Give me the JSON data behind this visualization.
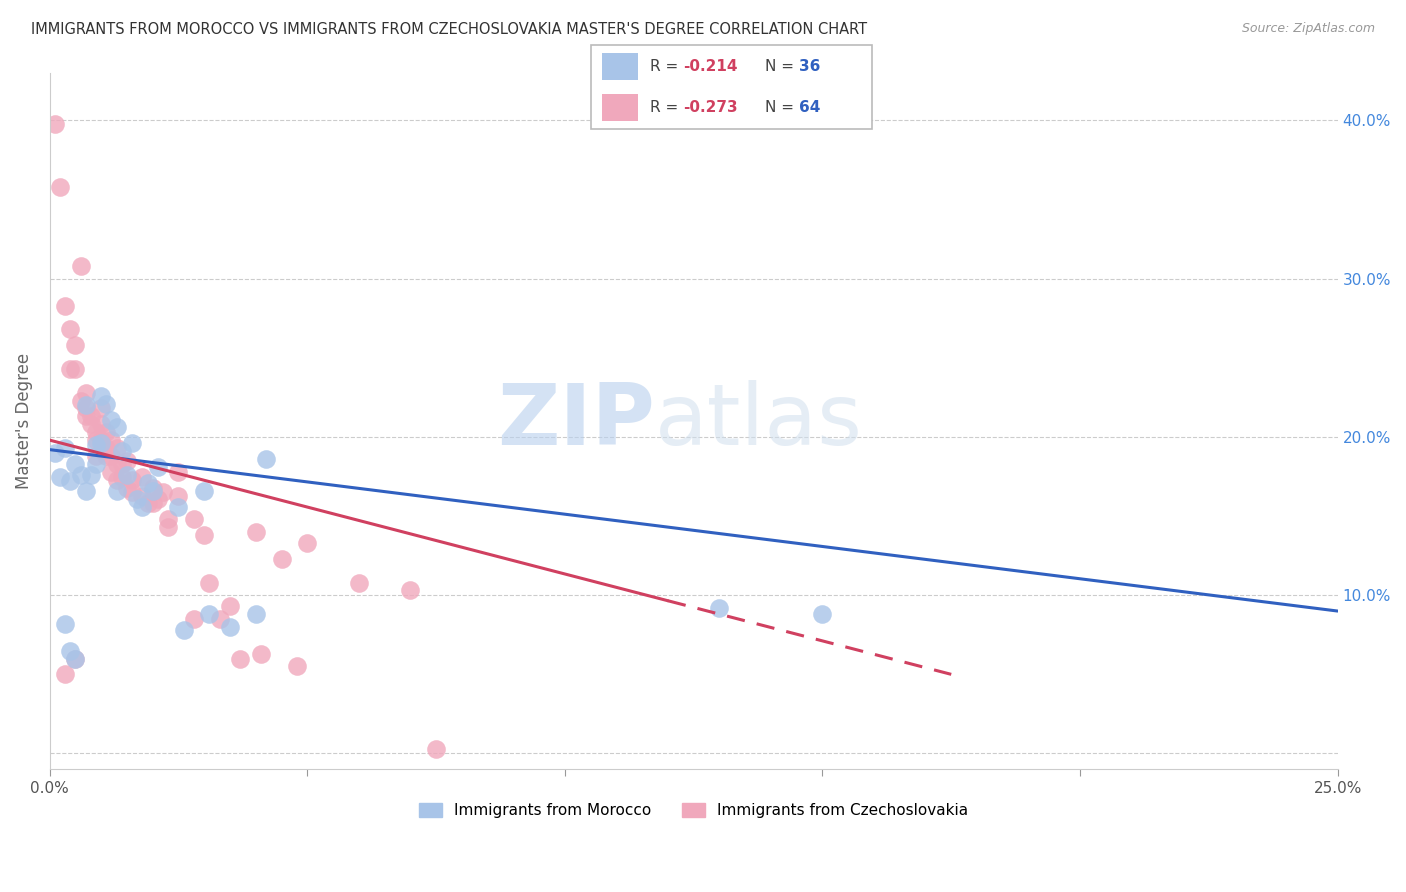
{
  "title": "IMMIGRANTS FROM MOROCCO VS IMMIGRANTS FROM CZECHOSLOVAKIA MASTER'S DEGREE CORRELATION CHART",
  "source": "Source: ZipAtlas.com",
  "ylabel": "Master's Degree",
  "y_ticks": [
    0.0,
    0.1,
    0.2,
    0.3,
    0.4
  ],
  "y_tick_labels": [
    "",
    "10.0%",
    "20.0%",
    "30.0%",
    "40.0%"
  ],
  "x_lim": [
    0.0,
    0.25
  ],
  "y_lim": [
    -0.01,
    0.43
  ],
  "watermark_zip": "ZIP",
  "watermark_atlas": "atlas",
  "blue_color": "#A8C4E8",
  "pink_color": "#F0A8BC",
  "blue_line_color": "#3060C0",
  "pink_line_color": "#D04060",
  "blue_scatter": [
    [
      0.001,
      0.19
    ],
    [
      0.002,
      0.175
    ],
    [
      0.003,
      0.193
    ],
    [
      0.004,
      0.172
    ],
    [
      0.004,
      0.065
    ],
    [
      0.005,
      0.183
    ],
    [
      0.005,
      0.06
    ],
    [
      0.006,
      0.176
    ],
    [
      0.007,
      0.166
    ],
    [
      0.007,
      0.22
    ],
    [
      0.008,
      0.176
    ],
    [
      0.009,
      0.183
    ],
    [
      0.009,
      0.195
    ],
    [
      0.01,
      0.226
    ],
    [
      0.01,
      0.196
    ],
    [
      0.011,
      0.221
    ],
    [
      0.012,
      0.211
    ],
    [
      0.013,
      0.206
    ],
    [
      0.013,
      0.166
    ],
    [
      0.014,
      0.191
    ],
    [
      0.015,
      0.176
    ],
    [
      0.016,
      0.196
    ],
    [
      0.017,
      0.161
    ],
    [
      0.018,
      0.156
    ],
    [
      0.019,
      0.171
    ],
    [
      0.02,
      0.166
    ],
    [
      0.021,
      0.181
    ],
    [
      0.025,
      0.156
    ],
    [
      0.026,
      0.078
    ],
    [
      0.03,
      0.166
    ],
    [
      0.031,
      0.088
    ],
    [
      0.035,
      0.08
    ],
    [
      0.04,
      0.088
    ],
    [
      0.042,
      0.186
    ],
    [
      0.003,
      0.082
    ],
    [
      0.13,
      0.092
    ],
    [
      0.15,
      0.088
    ]
  ],
  "pink_scatter": [
    [
      0.001,
      0.398
    ],
    [
      0.002,
      0.358
    ],
    [
      0.003,
      0.283
    ],
    [
      0.003,
      0.05
    ],
    [
      0.004,
      0.268
    ],
    [
      0.004,
      0.243
    ],
    [
      0.005,
      0.258
    ],
    [
      0.005,
      0.243
    ],
    [
      0.005,
      0.06
    ],
    [
      0.006,
      0.308
    ],
    [
      0.006,
      0.223
    ],
    [
      0.007,
      0.228
    ],
    [
      0.007,
      0.218
    ],
    [
      0.007,
      0.213
    ],
    [
      0.008,
      0.213
    ],
    [
      0.008,
      0.208
    ],
    [
      0.009,
      0.203
    ],
    [
      0.009,
      0.198
    ],
    [
      0.009,
      0.188
    ],
    [
      0.01,
      0.218
    ],
    [
      0.01,
      0.208
    ],
    [
      0.01,
      0.198
    ],
    [
      0.011,
      0.203
    ],
    [
      0.011,
      0.193
    ],
    [
      0.011,
      0.188
    ],
    [
      0.012,
      0.198
    ],
    [
      0.012,
      0.188
    ],
    [
      0.012,
      0.178
    ],
    [
      0.013,
      0.193
    ],
    [
      0.013,
      0.183
    ],
    [
      0.013,
      0.173
    ],
    [
      0.014,
      0.183
    ],
    [
      0.014,
      0.175
    ],
    [
      0.015,
      0.185
    ],
    [
      0.015,
      0.168
    ],
    [
      0.016,
      0.173
    ],
    [
      0.016,
      0.165
    ],
    [
      0.018,
      0.175
    ],
    [
      0.018,
      0.163
    ],
    [
      0.019,
      0.158
    ],
    [
      0.02,
      0.168
    ],
    [
      0.02,
      0.158
    ],
    [
      0.021,
      0.161
    ],
    [
      0.022,
      0.165
    ],
    [
      0.023,
      0.148
    ],
    [
      0.023,
      0.143
    ],
    [
      0.025,
      0.178
    ],
    [
      0.025,
      0.163
    ],
    [
      0.028,
      0.148
    ],
    [
      0.028,
      0.085
    ],
    [
      0.03,
      0.138
    ],
    [
      0.031,
      0.108
    ],
    [
      0.033,
      0.085
    ],
    [
      0.035,
      0.093
    ],
    [
      0.037,
      0.06
    ],
    [
      0.04,
      0.14
    ],
    [
      0.041,
      0.063
    ],
    [
      0.045,
      0.123
    ],
    [
      0.048,
      0.055
    ],
    [
      0.05,
      0.133
    ],
    [
      0.06,
      0.108
    ],
    [
      0.07,
      0.103
    ],
    [
      0.075,
      0.003
    ]
  ],
  "blue_line_x": [
    0.0,
    0.25
  ],
  "blue_line_y_start": 0.192,
  "blue_line_y_end": 0.09,
  "pink_line_x": [
    0.0,
    0.175
  ],
  "pink_line_y_start": 0.198,
  "pink_line_y_end": 0.05
}
